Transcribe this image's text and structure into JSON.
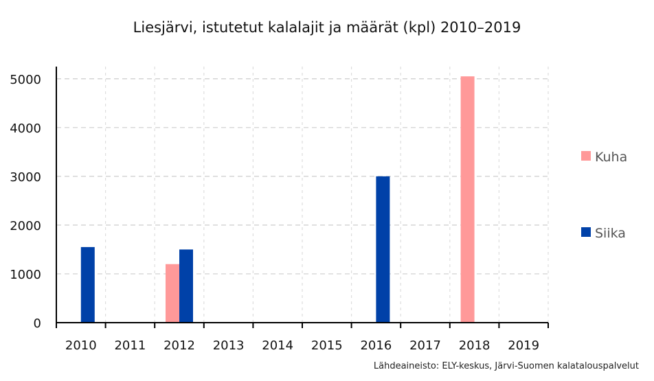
{
  "chart_data": {
    "type": "bar",
    "title": "Liesjärvi, istutetut kalalajit ja määrät (kpl) 2010–2019",
    "categories": [
      "2010",
      "2011",
      "2012",
      "2013",
      "2014",
      "2015",
      "2016",
      "2017",
      "2018",
      "2019"
    ],
    "series": [
      {
        "name": "Kuha",
        "color": "#ff9999",
        "values": [
          0,
          0,
          1200,
          0,
          0,
          0,
          0,
          0,
          5050,
          0
        ]
      },
      {
        "name": "Siika",
        "color": "#0041a8",
        "values": [
          1550,
          0,
          1500,
          0,
          0,
          0,
          3000,
          0,
          0,
          0
        ]
      }
    ],
    "ylim": [
      0,
      5200
    ],
    "yticks": [
      0,
      1000,
      2000,
      3000,
      4000,
      5000
    ],
    "grid": true,
    "legend": "right",
    "source": "Lähdeaineisto: ELY-keskus, Järvi-Suomen kalatalouspalvelut"
  }
}
